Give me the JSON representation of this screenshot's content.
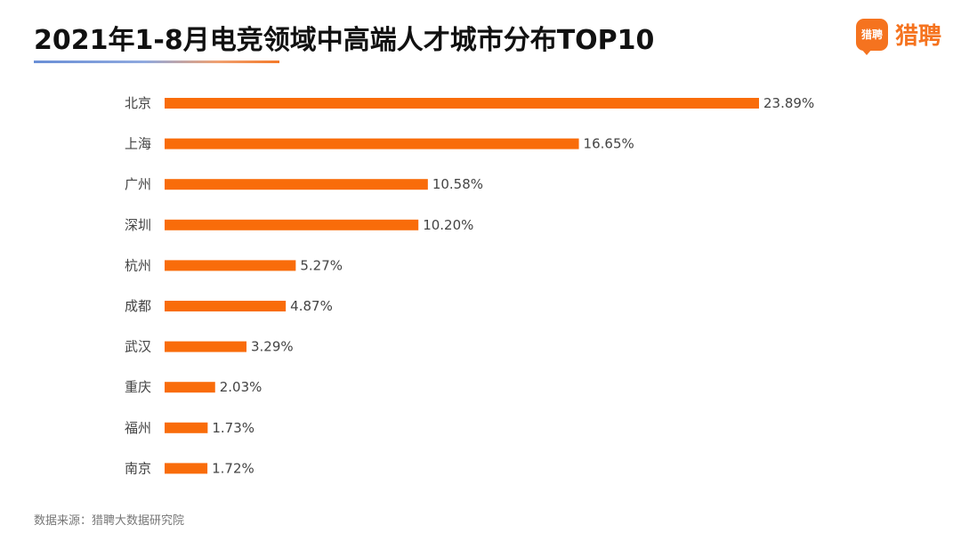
{
  "header": {
    "title": "2021年1-8月电竞领域中高端人才城市分布TOP10",
    "logo_badge": "猎聘",
    "logo_text": "猎聘"
  },
  "footer": {
    "source": "数据来源：猎聘大数据研究院"
  },
  "colors": {
    "bar": "#f96c0a",
    "label": "#444444",
    "logo": "#f5731f"
  },
  "chart_data": {
    "type": "bar",
    "orientation": "horizontal",
    "title": "2021年1-8月电竞领域中高端人才城市分布TOP10",
    "categories": [
      "北京",
      "上海",
      "广州",
      "深圳",
      "杭州",
      "成都",
      "武汉",
      "重庆",
      "福州",
      "南京"
    ],
    "values": [
      23.89,
      16.65,
      10.58,
      10.2,
      5.27,
      4.87,
      3.29,
      2.03,
      1.73,
      1.72
    ],
    "value_labels": [
      "23.89%",
      "16.65%",
      "10.58%",
      "10.20%",
      "5.27%",
      "4.87%",
      "3.29%",
      "2.03%",
      "1.73%",
      "1.72%"
    ],
    "unit": "%",
    "grid": false,
    "legend": "none"
  }
}
